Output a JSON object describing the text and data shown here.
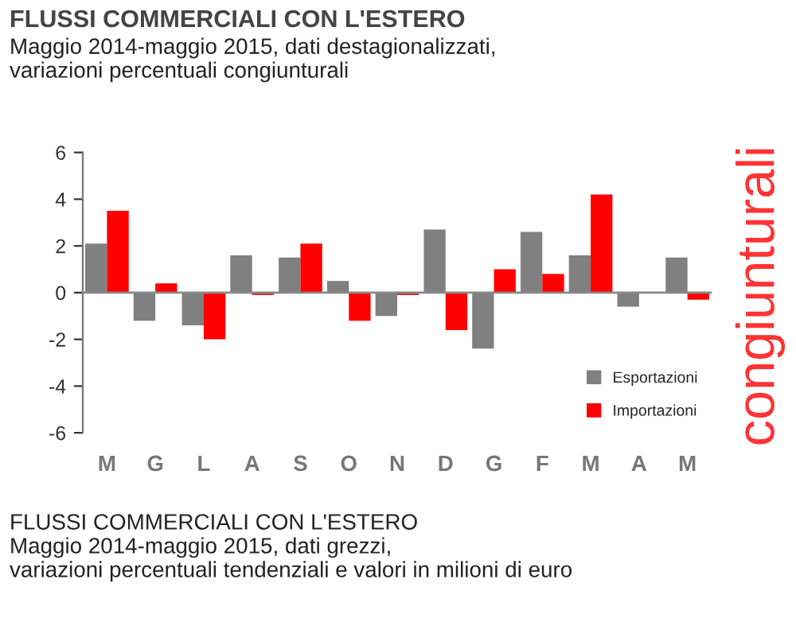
{
  "chart_data": {
    "type": "bar",
    "title": "FLUSSI COMMERCIALI CON L'ESTERO",
    "subtitle": "Maggio 2014-maggio 2015, dati destagionalizzati,\nvariazioni percentuali congiunturali",
    "categories": [
      "M",
      "G",
      "L",
      "A",
      "S",
      "O",
      "N",
      "D",
      "G",
      "F",
      "M",
      "A",
      "M"
    ],
    "series": [
      {
        "name": "Esportazioni",
        "color": "#808080",
        "values": [
          2.1,
          -1.2,
          -1.4,
          1.6,
          1.5,
          0.5,
          -1.0,
          2.7,
          -2.4,
          2.6,
          1.6,
          -0.6,
          1.5
        ]
      },
      {
        "name": "Importazioni",
        "color": "#ff0000",
        "values": [
          3.5,
          0.4,
          -2.0,
          -0.1,
          2.1,
          -1.2,
          -0.1,
          -1.6,
          1.0,
          0.8,
          4.2,
          0,
          -0.3
        ]
      }
    ],
    "ylim": [
      -6,
      6
    ],
    "yticks": [
      -6,
      -4,
      -2,
      0,
      2,
      4,
      6
    ],
    "legend": "bottom right",
    "annotations": [
      "congiunturali",
      "FLUSSI COMMERCIALI CON L'ESTERO\nMaggio 2014-maggio 2015, dati grezzi,\nvariazioni percentuali tendenziali e valori in milioni di euro"
    ]
  }
}
